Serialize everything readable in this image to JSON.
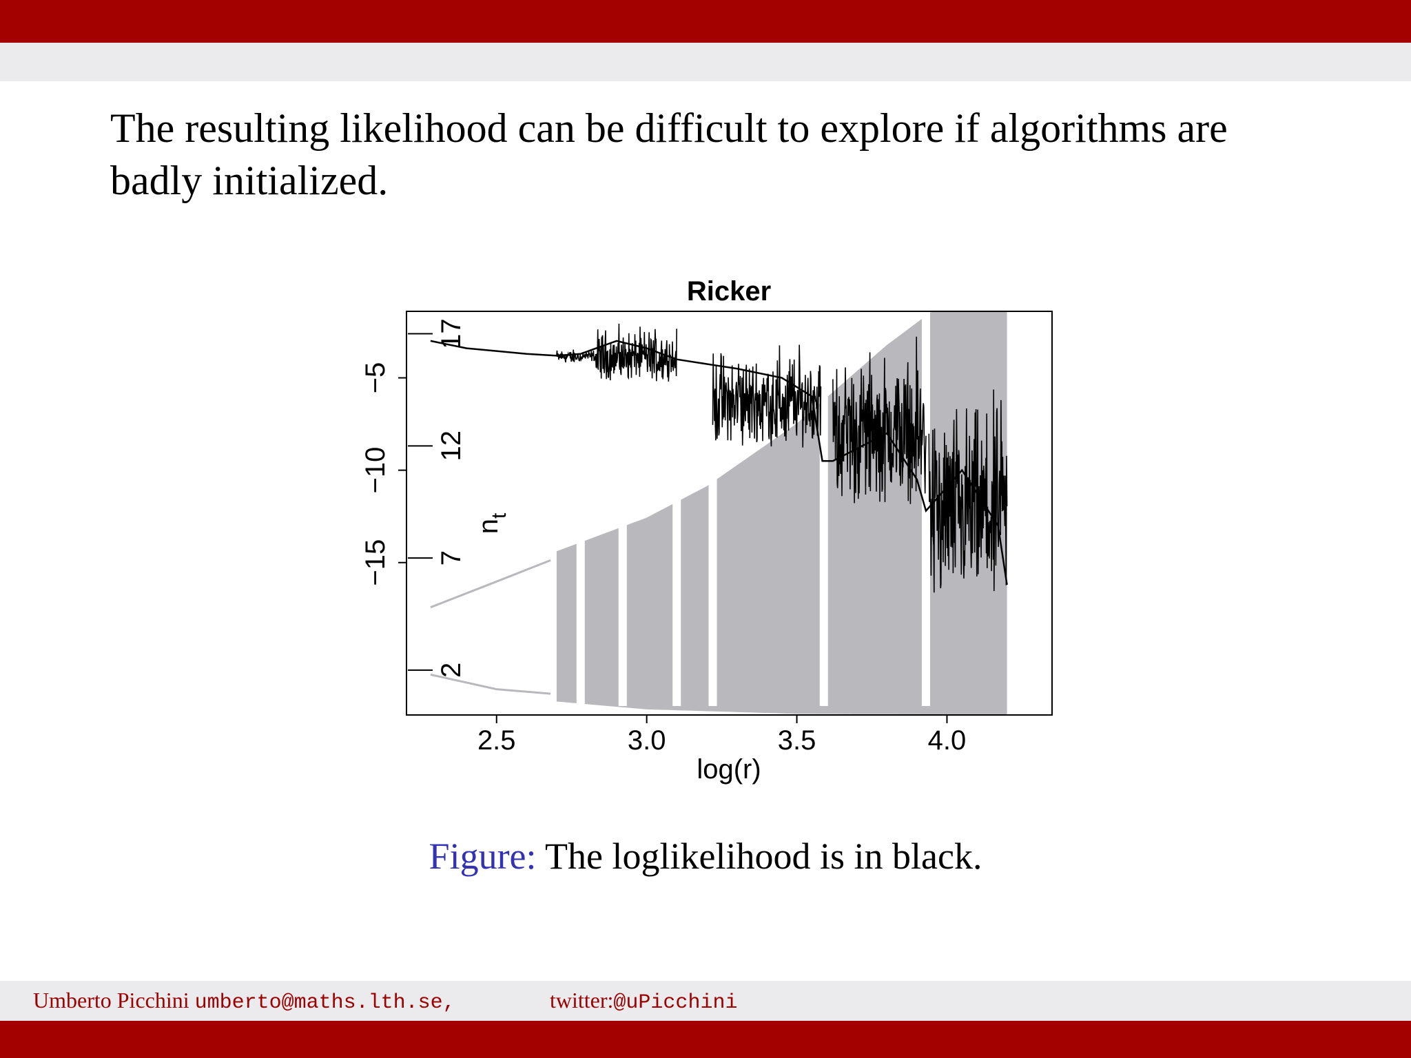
{
  "slide": {
    "body_lines": [
      "The resulting likelihood can be difficult to explore if algorithms are",
      "badly initialized."
    ],
    "caption_label": "Figure:",
    "caption_text": " The loglikelihood is in black.",
    "footer": {
      "name": "Umberto Picchini",
      "email": "umberto@maths.lth.se,",
      "twitter_label": "twitter:",
      "twitter_handle": "@uPicchini"
    },
    "colors": {
      "header_bar": "#a30000",
      "header_strip": "#ebebee",
      "caption_label": "#3333b2",
      "footer_text": "#9c0000",
      "bifurcation_gray": "#b9b9bd",
      "loglikelihood_black": "#000000"
    }
  },
  "chart_data": {
    "type": "line",
    "title": "Ricker",
    "xlabel": "log(r)",
    "xlim": [
      2.2,
      4.35
    ],
    "x_ticks": [
      "2.5",
      "3.0",
      "3.5",
      "4.0"
    ],
    "left_axis": {
      "ticks": [
        "−5",
        "−10",
        "−15"
      ],
      "tick_values": [
        -5,
        -10,
        -15
      ],
      "range": [
        -23.25,
        -1.4
      ]
    },
    "inner_axis": {
      "label": "n",
      "label_sub": "t",
      "ticks": [
        "17",
        "12",
        "7",
        "2"
      ],
      "tick_values": [
        17,
        12,
        7,
        2
      ],
      "range": [
        0,
        18
      ]
    },
    "grid": false,
    "series": [
      {
        "role": "loglikelihood",
        "axis": "left",
        "color": "#000000",
        "points": [
          [
            2.28,
            -3.0
          ],
          [
            2.4,
            -3.4
          ],
          [
            2.6,
            -3.7
          ],
          [
            2.7,
            -3.8
          ],
          [
            2.78,
            -3.7
          ],
          [
            2.9,
            -3.0
          ],
          [
            3.0,
            -3.4
          ],
          [
            3.1,
            -4.0
          ],
          [
            3.22,
            -4.3
          ],
          [
            3.3,
            -4.5
          ],
          [
            3.45,
            -5.0
          ],
          [
            3.55,
            -6.0
          ],
          [
            3.585,
            -9.5
          ],
          [
            3.62,
            -9.5
          ],
          [
            3.8,
            -8.0
          ],
          [
            3.9,
            -10.5
          ],
          [
            3.93,
            -12.2
          ],
          [
            4.05,
            -10.0
          ],
          [
            4.17,
            -13.0
          ],
          [
            4.2,
            -16.2
          ]
        ],
        "noisy_ranges": [
          {
            "x": [
              2.7,
              2.83
            ],
            "low": -4.2,
            "high": -3.3
          },
          {
            "x": [
              2.83,
              3.1
            ],
            "low": -5.2,
            "high": -1.8
          },
          {
            "x": [
              3.22,
              3.58
            ],
            "low": -8.8,
            "high": -2.3
          },
          {
            "x": [
              3.62,
              3.93
            ],
            "low": -12.0,
            "high": -1.8
          },
          {
            "x": [
              3.94,
              4.2
            ],
            "low": -17.5,
            "high": -4.0
          }
        ]
      },
      {
        "role": "bifurcation",
        "axis": "inner",
        "color": "#b9b9bd",
        "stable_branches": [
          [
            [
              2.28,
              1.8
            ],
            [
              2.5,
              1.15
            ],
            [
              2.68,
              0.95
            ]
          ],
          [
            [
              2.28,
              4.8
            ],
            [
              2.5,
              5.95
            ],
            [
              2.68,
              6.9
            ]
          ]
        ],
        "chaotic_envelope": {
          "x": [
            2.7,
            4.2
          ],
          "lower": [
            [
              2.7,
              0.6
            ],
            [
              3.0,
              0.25
            ],
            [
              3.5,
              0.05
            ],
            [
              4.2,
              0.02
            ]
          ],
          "upper": [
            [
              2.7,
              7.3
            ],
            [
              3.0,
              8.8
            ],
            [
              3.2,
              10.2
            ],
            [
              3.5,
              13.0
            ],
            [
              3.8,
              16.5
            ],
            [
              3.95,
              18.0
            ]
          ]
        },
        "periodic_windows": [
          2.78,
          2.92,
          3.1,
          3.22,
          3.59,
          3.93
        ]
      }
    ]
  }
}
